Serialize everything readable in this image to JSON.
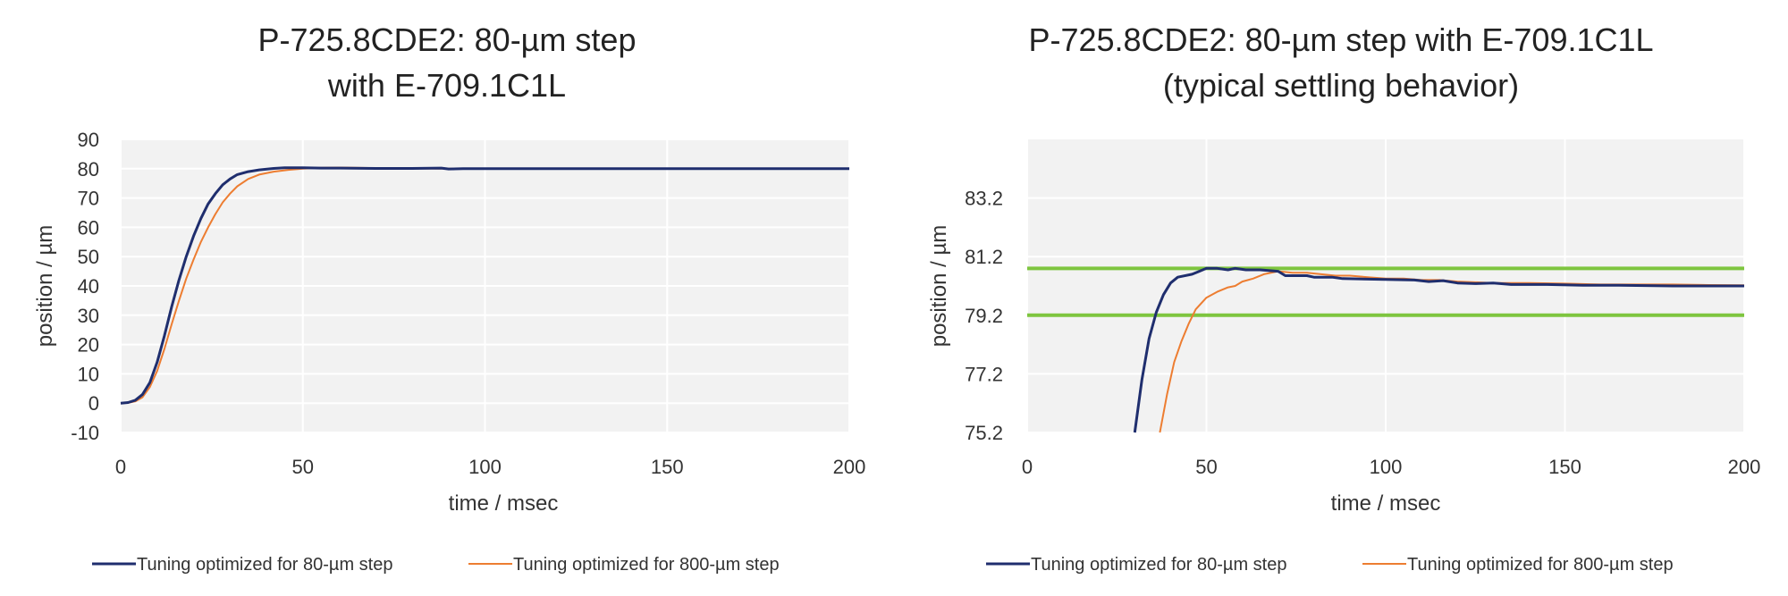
{
  "chart_data": [
    {
      "type": "line",
      "title": [
        "P-725.8CDE2: 80-µm step",
        "with E-709.1C1L"
      ],
      "xlabel": "time / msec",
      "ylabel": "position / µm",
      "xlim": [
        0,
        200
      ],
      "ylim": [
        -10,
        90
      ],
      "x_ticks": [
        0,
        50,
        100,
        150,
        200
      ],
      "y_ticks": [
        -10,
        0,
        10,
        20,
        30,
        40,
        50,
        60,
        70,
        80,
        90
      ],
      "grid": true,
      "legend_position": "bottom",
      "series": [
        {
          "name": "Tuning optimized for 80-µm step",
          "color": "#1f2e6e",
          "points": [
            [
              0,
              0
            ],
            [
              2,
              0.2
            ],
            [
              4,
              1
            ],
            [
              6,
              3
            ],
            [
              8,
              7
            ],
            [
              10,
              14
            ],
            [
              12,
              23
            ],
            [
              14,
              33
            ],
            [
              16,
              42
            ],
            [
              18,
              50
            ],
            [
              20,
              57
            ],
            [
              22,
              63
            ],
            [
              24,
              68
            ],
            [
              26,
              71.5
            ],
            [
              28,
              74.5
            ],
            [
              30,
              76.5
            ],
            [
              32,
              78
            ],
            [
              35,
              79
            ],
            [
              38,
              79.6
            ],
            [
              42,
              80.1
            ],
            [
              45,
              80.3
            ],
            [
              50,
              80.3
            ],
            [
              55,
              80.2
            ],
            [
              60,
              80.2
            ],
            [
              70,
              80.1
            ],
            [
              80,
              80.1
            ],
            [
              88,
              80.2
            ],
            [
              90,
              79.9
            ],
            [
              94,
              80.0
            ],
            [
              100,
              80.0
            ],
            [
              150,
              80.0
            ],
            [
              200,
              80.0
            ]
          ]
        },
        {
          "name": "Tuning optimized for 800-µm step",
          "color": "#ed7d31",
          "points": [
            [
              0,
              0
            ],
            [
              2,
              0.1
            ],
            [
              4,
              0.6
            ],
            [
              6,
              2
            ],
            [
              8,
              5.5
            ],
            [
              10,
              11
            ],
            [
              12,
              18.5
            ],
            [
              14,
              27
            ],
            [
              16,
              35
            ],
            [
              18,
              42.5
            ],
            [
              20,
              49
            ],
            [
              22,
              55
            ],
            [
              24,
              60
            ],
            [
              26,
              64.5
            ],
            [
              28,
              68.5
            ],
            [
              30,
              71.5
            ],
            [
              32,
              74
            ],
            [
              35,
              76.5
            ],
            [
              38,
              78
            ],
            [
              42,
              79
            ],
            [
              46,
              79.6
            ],
            [
              50,
              80
            ],
            [
              55,
              80.3
            ],
            [
              60,
              80.4
            ],
            [
              70,
              80.2
            ],
            [
              80,
              80.1
            ],
            [
              90,
              80.0
            ],
            [
              100,
              80.0
            ],
            [
              150,
              80.0
            ],
            [
              200,
              80.0
            ]
          ]
        }
      ]
    },
    {
      "type": "line",
      "title": [
        "P-725.8CDE2: 80-µm step with E-709.1C1L",
        "(typical settling behavior)"
      ],
      "xlabel": "time / msec",
      "ylabel": "position / µm",
      "xlim": [
        0,
        200
      ],
      "ylim": [
        75.2,
        85.2
      ],
      "x_ticks": [
        0,
        50,
        100,
        150,
        200
      ],
      "y_ticks": [
        75.2,
        77.2,
        79.2,
        81.2,
        83.2
      ],
      "grid": true,
      "legend_position": "bottom",
      "reference_lines": [
        {
          "y": 80.8,
          "color": "#7ec53f"
        },
        {
          "y": 79.2,
          "color": "#7ec53f"
        }
      ],
      "series": [
        {
          "name": "Tuning optimized for 80-µm step",
          "color": "#1f2e6e",
          "points": [
            [
              30,
              75.2
            ],
            [
              32,
              77.0
            ],
            [
              34,
              78.4
            ],
            [
              36,
              79.3
            ],
            [
              38,
              79.9
            ],
            [
              40,
              80.3
            ],
            [
              42,
              80.5
            ],
            [
              46,
              80.6
            ],
            [
              48,
              80.7
            ],
            [
              50,
              80.8
            ],
            [
              53,
              80.8
            ],
            [
              56,
              80.75
            ],
            [
              58,
              80.8
            ],
            [
              61,
              80.75
            ],
            [
              65,
              80.75
            ],
            [
              70,
              80.7
            ],
            [
              72,
              80.55
            ],
            [
              78,
              80.55
            ],
            [
              80,
              80.5
            ],
            [
              85,
              80.5
            ],
            [
              88,
              80.45
            ],
            [
              100,
              80.42
            ],
            [
              108,
              80.4
            ],
            [
              112,
              80.35
            ],
            [
              116,
              80.38
            ],
            [
              120,
              80.3
            ],
            [
              125,
              80.28
            ],
            [
              130,
              80.3
            ],
            [
              135,
              80.25
            ],
            [
              145,
              80.25
            ],
            [
              155,
              80.22
            ],
            [
              165,
              80.22
            ],
            [
              180,
              80.2
            ],
            [
              190,
              80.2
            ],
            [
              200,
              80.2
            ]
          ]
        },
        {
          "name": "Tuning optimized for 800-µm step",
          "color": "#ed7d31",
          "points": [
            [
              37,
              75.2
            ],
            [
              39,
              76.5
            ],
            [
              41,
              77.6
            ],
            [
              43,
              78.3
            ],
            [
              45,
              78.9
            ],
            [
              47,
              79.4
            ],
            [
              50,
              79.8
            ],
            [
              53,
              80.0
            ],
            [
              56,
              80.15
            ],
            [
              58,
              80.2
            ],
            [
              60,
              80.35
            ],
            [
              63,
              80.45
            ],
            [
              66,
              80.6
            ],
            [
              70,
              80.7
            ],
            [
              74,
              80.65
            ],
            [
              78,
              80.65
            ],
            [
              82,
              80.6
            ],
            [
              86,
              80.55
            ],
            [
              90,
              80.55
            ],
            [
              95,
              80.5
            ],
            [
              100,
              80.45
            ],
            [
              105,
              80.45
            ],
            [
              110,
              80.4
            ],
            [
              115,
              80.4
            ],
            [
              120,
              80.35
            ],
            [
              130,
              80.3
            ],
            [
              140,
              80.3
            ],
            [
              150,
              80.28
            ],
            [
              160,
              80.25
            ],
            [
              170,
              80.25
            ],
            [
              180,
              80.25
            ],
            [
              190,
              80.23
            ],
            [
              200,
              80.22
            ]
          ]
        }
      ]
    }
  ]
}
